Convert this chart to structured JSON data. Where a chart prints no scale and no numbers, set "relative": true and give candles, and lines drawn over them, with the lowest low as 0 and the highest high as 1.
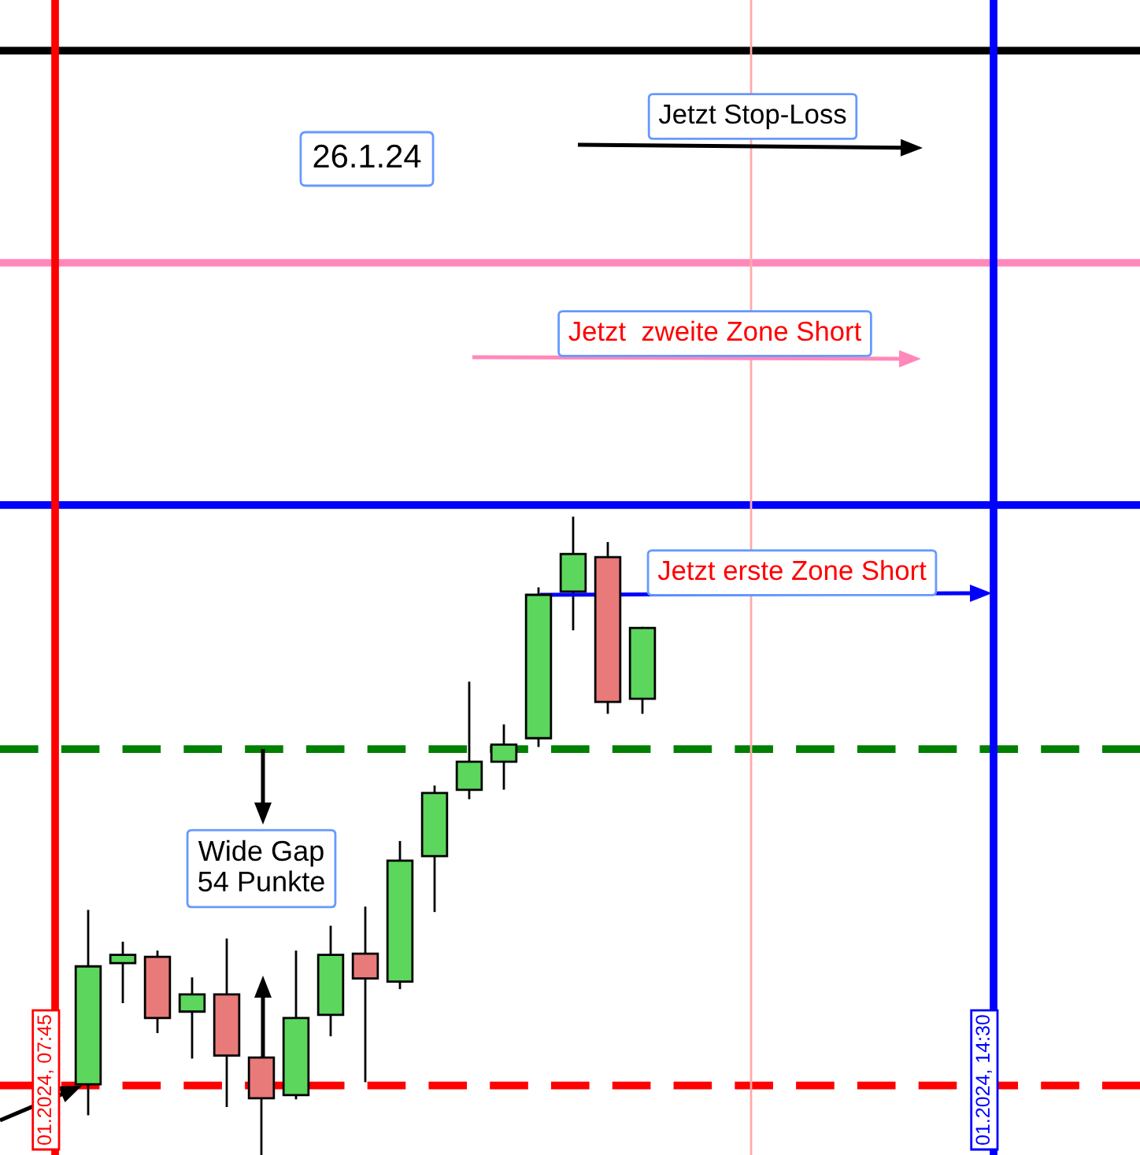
{
  "chart_data": {
    "type": "candlestick",
    "relative": true,
    "categories": [
      null,
      null,
      null,
      null,
      null,
      null,
      null,
      null,
      null,
      null,
      null,
      null,
      null,
      null,
      null,
      null,
      null
    ],
    "ohlc": [
      [
        0.111,
        0.383,
        0.064,
        0.296
      ],
      [
        0.301,
        0.333,
        0.24,
        0.314
      ],
      [
        0.311,
        0.319,
        0.193,
        0.215
      ],
      [
        0.225,
        0.277,
        0.153,
        0.252
      ],
      [
        0.252,
        0.338,
        0.077,
        0.156
      ],
      [
        0.153,
        0.153,
        0,
        0.089
      ],
      [
        0.094,
        0.319,
        0.089,
        0.215
      ],
      [
        0.22,
        0.358,
        0.188,
        0.314
      ],
      [
        0.316,
        0.388,
        0.116,
        0.277
      ],
      [
        0.272,
        0.491,
        0.262,
        0.462
      ],
      [
        0.469,
        0.578,
        0.383,
        0.568
      ],
      [
        0.573,
        0.741,
        0.56,
        0.617
      ],
      [
        0.617,
        0.674,
        0.575,
        0.644
      ],
      [
        0.654,
        0.889,
        0.642,
        0.879
      ],
      [
        0.884,
        1.0,
        0.825,
        0.943
      ],
      [
        0.938,
        0.96,
        0.694,
        0.711
      ],
      [
        0.716,
        0.827,
        0.694,
        0.827
      ]
    ],
    "ref_lines": [
      {
        "axis": "y",
        "value": 1.733,
        "label": null,
        "color": "#000000",
        "line_style": "solid"
      },
      {
        "axis": "y",
        "value": 1.4,
        "label": null,
        "color": "#ff88bb",
        "line_style": "solid"
      },
      {
        "axis": "y",
        "value": 1.02,
        "label": null,
        "color": "#0000ff",
        "line_style": "solid"
      },
      {
        "axis": "y",
        "value": 0.637,
        "label": null,
        "color": "#008000",
        "line_style": "dashed"
      },
      {
        "axis": "y",
        "value": 0.109,
        "label": null,
        "color": "#ff0000",
        "line_style": "dashed"
      }
    ],
    "annotations": [
      "26.1.24",
      "Jetzt Stop-Loss",
      "Jetzt  zweite Zone Short",
      "Jetzt erste Zone Short",
      "Wide Gap\n54 Punkte",
      "01.2024, 07:45",
      "01.2024, 14:30"
    ]
  }
}
